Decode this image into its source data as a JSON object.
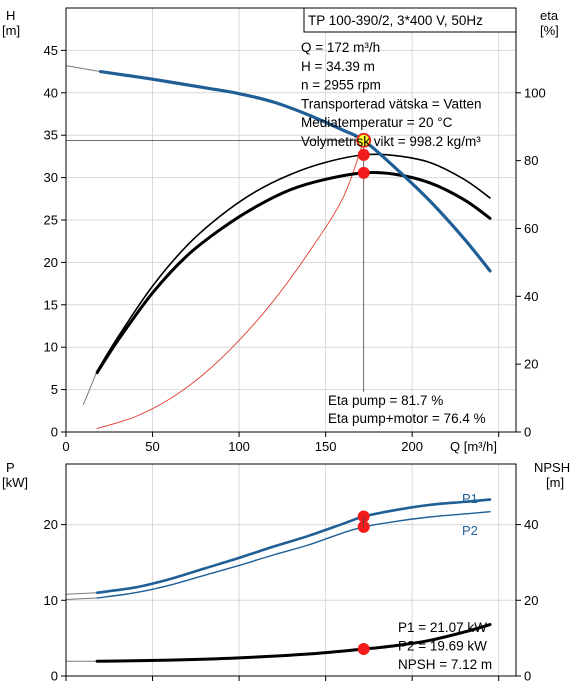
{
  "chart_data": [
    {
      "type": "line",
      "title": "TP 100-390/2, 3*400 V, 50Hz",
      "xlabel": "Q [m³/h]",
      "ylabel_left": "H",
      "ylabel_left_unit": "[m]",
      "ylabel_right": "eta",
      "ylabel_right_unit": "[%]",
      "xlim": [
        0,
        260
      ],
      "ylim_left": [
        0,
        50
      ],
      "ylim_right": [
        0,
        125
      ],
      "x_ticks": [
        "0",
        "50",
        "100",
        "150",
        "200"
      ],
      "y_left_ticks": [
        "0",
        "5",
        "10",
        "15",
        "20",
        "25",
        "30",
        "35",
        "40",
        "45"
      ],
      "y_right_ticks": [
        "0",
        "20",
        "40",
        "60",
        "80",
        "100"
      ],
      "grid": true,
      "series": [
        {
          "key": "H",
          "axis": "left",
          "color": "#1f5f96",
          "x": [
            20,
            50,
            80,
            100,
            120,
            140,
            160,
            172,
            190,
            210,
            230,
            245
          ],
          "values": [
            42.5,
            41.6,
            40.6,
            39.9,
            38.9,
            37.4,
            35.6,
            34.39,
            31.2,
            27.3,
            22.8,
            19.0
          ],
          "ext_x": [
            0,
            20
          ],
          "ext_values": [
            43.2,
            42.5
          ]
        },
        {
          "key": "eta_pump",
          "axis": "right",
          "color": "#000000",
          "x": [
            18,
            30,
            50,
            70,
            90,
            110,
            130,
            150,
            172,
            190,
            210,
            230,
            245
          ],
          "values": [
            18,
            28,
            43,
            55,
            64,
            71,
            76,
            79.5,
            81.7,
            81.5,
            79.5,
            74.5,
            69
          ],
          "ext_x": [
            10,
            18
          ],
          "ext_values": [
            8,
            18
          ]
        },
        {
          "key": "eta_total",
          "axis": "right",
          "color": "#000000",
          "x": [
            18,
            30,
            50,
            70,
            90,
            110,
            130,
            150,
            172,
            190,
            210,
            230,
            245
          ],
          "values": [
            17.5,
            27,
            41,
            52,
            60,
            66.5,
            71.5,
            74.5,
            76.4,
            76,
            73.5,
            68.5,
            63
          ]
        },
        {
          "key": "system",
          "axis": "left",
          "color": "#e23a2f",
          "x": [
            18,
            40,
            60,
            80,
            100,
            120,
            140,
            160,
            172
          ],
          "values": [
            0.4,
            1.8,
            3.9,
            6.9,
            10.8,
            15.5,
            21.1,
            27.6,
            34.39
          ]
        }
      ],
      "operating_points": [
        {
          "series": "H",
          "x": 172,
          "y": 34.39
        },
        {
          "series": "eta_pump",
          "x": 172,
          "y": 81.7
        },
        {
          "series": "eta_total",
          "x": 172,
          "y": 76.4
        }
      ],
      "info_lines": [
        "Q = 172 m³/h",
        "H = 34.39 m",
        "n = 2955 rpm",
        "Transporterad vätska = Vatten",
        "Mediatemperatur = 20 °C",
        "Volymetrisk vikt = 998.2 kg/m³"
      ],
      "eta_lines": [
        "Eta pump = 81.7 %",
        "Eta pump+motor = 76.4 %"
      ]
    },
    {
      "type": "line",
      "xlim": [
        0,
        260
      ],
      "ylabel_left": "P",
      "ylabel_left_unit": "[kW]",
      "ylabel_right": "NPSH",
      "ylabel_right_unit": "[m]",
      "ylim_left": [
        0,
        28
      ],
      "ylim_right": [
        0,
        56
      ],
      "y_left_ticks": [
        "0",
        "10",
        "20"
      ],
      "y_right_ticks": [
        "0",
        "20",
        "40"
      ],
      "grid": true,
      "series": [
        {
          "key": "P1",
          "name": "P1",
          "axis": "left",
          "color": "#1f5f96",
          "x": [
            18,
            40,
            60,
            80,
            100,
            120,
            140,
            160,
            172,
            190,
            210,
            230,
            245
          ],
          "values": [
            11.0,
            11.7,
            12.8,
            14.2,
            15.6,
            17.1,
            18.5,
            20.1,
            21.07,
            21.9,
            22.6,
            23.0,
            23.3
          ],
          "ext_x": [
            0,
            18
          ],
          "ext_values": [
            10.8,
            11.0
          ]
        },
        {
          "key": "P2",
          "name": "P2",
          "axis": "left",
          "color": "#1f5f96",
          "x": [
            18,
            40,
            60,
            80,
            100,
            120,
            140,
            160,
            172,
            190,
            210,
            230,
            245
          ],
          "values": [
            10.3,
            11.0,
            12.0,
            13.3,
            14.6,
            16.0,
            17.3,
            18.9,
            19.69,
            20.4,
            21.0,
            21.4,
            21.7
          ],
          "ext_x": [
            0,
            18
          ],
          "ext_values": [
            10.1,
            10.3
          ]
        },
        {
          "key": "NPSH",
          "axis": "right",
          "color": "#000000",
          "x": [
            18,
            60,
            100,
            140,
            172,
            190,
            210,
            230,
            245
          ],
          "values": [
            3.9,
            4.2,
            4.8,
            5.8,
            7.12,
            8.0,
            9.4,
            11.6,
            13.6
          ],
          "ext_x": [
            0,
            18
          ],
          "ext_values": [
            3.9,
            3.9
          ]
        }
      ],
      "operating_points": [
        {
          "series": "P1",
          "x": 172,
          "y": 21.07
        },
        {
          "series": "P2",
          "x": 172,
          "y": 19.69
        },
        {
          "series": "NPSH",
          "x": 172,
          "y": 7.12
        }
      ],
      "info_lines": [
        "P1 = 21.07 kW",
        "P2 = 19.69 kW",
        "NPSH = 7.12 m"
      ]
    }
  ]
}
